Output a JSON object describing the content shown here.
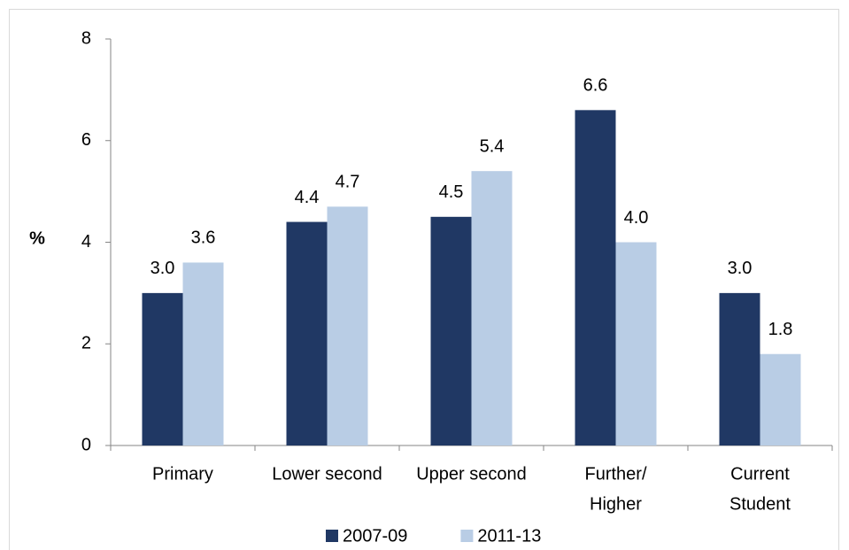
{
  "chart_data": {
    "type": "bar",
    "y_label": "%",
    "categories": [
      [
        "Primary"
      ],
      [
        "Lower second"
      ],
      [
        "Upper second"
      ],
      [
        "Further/",
        "Higher"
      ],
      [
        "Current",
        "Student"
      ]
    ],
    "series": [
      {
        "name": "2007-09",
        "color": "#203864",
        "values": [
          3.0,
          4.4,
          4.5,
          6.6,
          3.0
        ],
        "value_labels": [
          "3.0",
          "4.4",
          "4.5",
          "6.6",
          "3.0"
        ]
      },
      {
        "name": "2011-13",
        "color": "#b9cde5",
        "values": [
          3.6,
          4.7,
          5.4,
          4.0,
          1.8
        ],
        "value_labels": [
          "3.6",
          "4.7",
          "5.4",
          "4.0",
          "1.8"
        ]
      }
    ],
    "ylim": [
      0,
      8
    ],
    "yticks": [
      0,
      2,
      4,
      6,
      8
    ],
    "grid": false,
    "legend": "bottom"
  }
}
